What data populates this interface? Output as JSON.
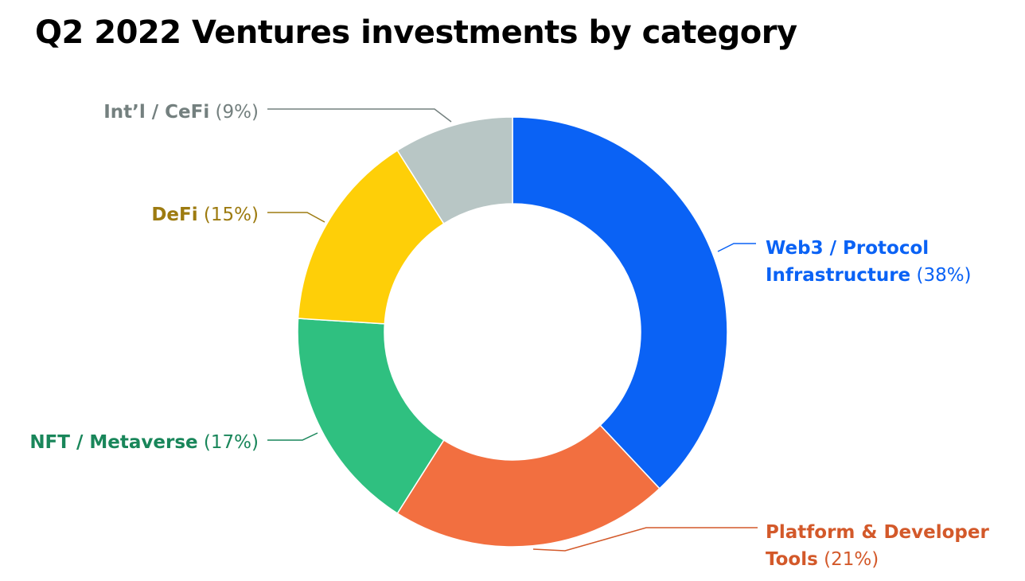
{
  "chart_data": {
    "type": "pie",
    "donut": true,
    "title": "Q2 2022 Ventures investments by category",
    "unit": "%",
    "slices": [
      {
        "name": "Web3 / Protocol Infrastructure",
        "label_lines": [
          "Web3 / Protocol",
          "Infrastructure"
        ],
        "value": 38,
        "value_label": "(38%)",
        "color": "#0a62f5",
        "label_color": "#0a62f5"
      },
      {
        "name": "Platform & Developer Tools",
        "label_lines": [
          "Platform & Developer",
          "Tools"
        ],
        "value": 21,
        "value_label": "(21%)",
        "color": "#f26f40",
        "label_color": "#d3592a"
      },
      {
        "name": "NFT / Metaverse",
        "label_lines": [
          "NFT / Metaverse"
        ],
        "value": 17,
        "value_label": "(17%)",
        "color": "#2fc080",
        "label_color": "#19865a"
      },
      {
        "name": "DeFi",
        "label_lines": [
          "DeFi"
        ],
        "value": 15,
        "value_label": "(15%)",
        "color": "#fecf08",
        "label_color": "#9d7b10"
      },
      {
        "name": "Int'l / CeFi",
        "label_lines": [
          "Int’l / CeFi"
        ],
        "value": 9,
        "value_label": "(9%)",
        "color": "#b8c6c5",
        "label_color": "#74807f"
      }
    ],
    "legend": "none",
    "start_angle": "12 o'clock",
    "direction": "clockwise"
  }
}
